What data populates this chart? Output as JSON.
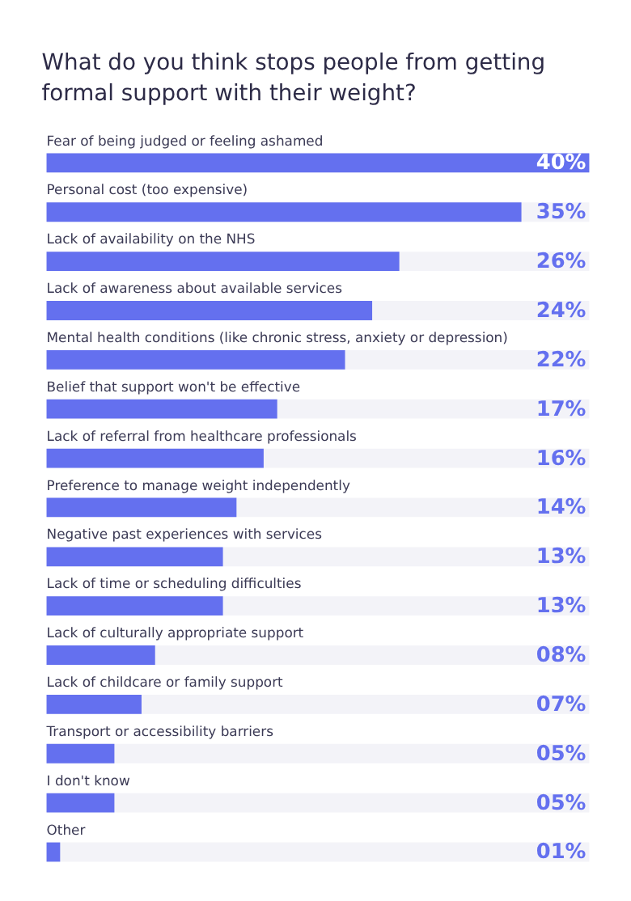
{
  "chart_data": {
    "type": "bar",
    "orientation": "horizontal",
    "title": [
      "What do you think stops people from getting",
      "formal support with their weight?"
    ],
    "categories": [
      "Fear of being judged or feeling ashamed",
      "Personal cost (too expensive)",
      "Lack of availability on the NHS",
      "Lack of awareness about available services",
      "Mental health conditions (like chronic stress, anxiety or depression)",
      "Belief that support won't be effective",
      "Lack of referral from healthcare professionals",
      "Preference to manage weight independently",
      "Negative past experiences with services",
      "Lack of time or scheduling difficulties",
      "Lack of culturally appropriate support",
      "Lack of childcare or family support",
      "Transport or accessibility barriers",
      "I don't know",
      "Other"
    ],
    "values": [
      40,
      35,
      26,
      24,
      22,
      17,
      16,
      14,
      13,
      13,
      8,
      7,
      5,
      5,
      1
    ],
    "value_labels": [
      "40%",
      "35%",
      "26%",
      "24%",
      "22%",
      "17%",
      "16%",
      "14%",
      "13%",
      "13%",
      "08%",
      "07%",
      "05%",
      "05%",
      "01%"
    ],
    "color": "#6470ef",
    "xlim": [
      0,
      40
    ]
  }
}
